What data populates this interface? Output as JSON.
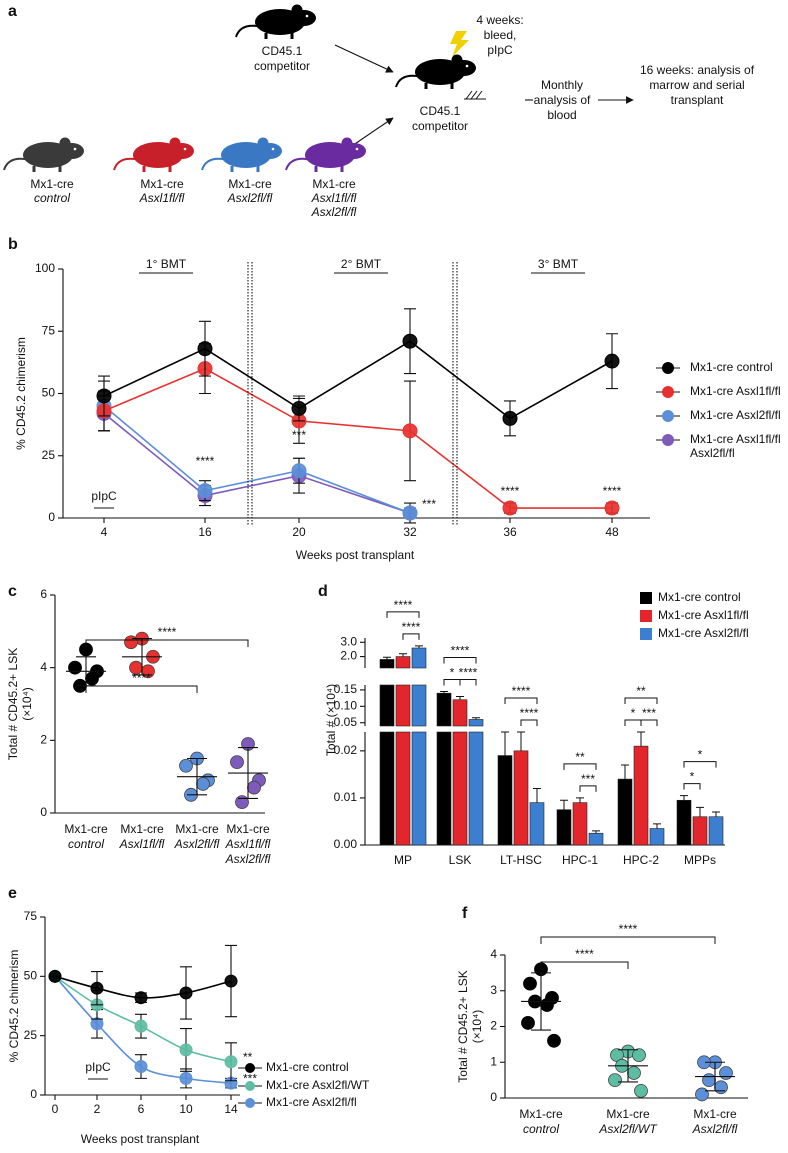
{
  "diagram": {
    "panel": "a",
    "competitor_top": [
      "CD45.1",
      "competitor"
    ],
    "competitor_right": [
      "CD45.1",
      "competitor"
    ],
    "step_1": [
      "4 weeks:",
      "bleed,",
      "pIpC"
    ],
    "step_2": [
      "Monthly",
      "analysis of",
      "blood"
    ],
    "step_3": [
      "16 weeks: analysis of",
      "marrow and serial",
      "transplant"
    ],
    "mice": [
      {
        "label": [
          "Mx1-cre",
          "control"
        ],
        "color": "#3a3a3a"
      },
      {
        "label": [
          "Mx1-cre",
          "Asxl1fl/fl"
        ],
        "color": "#c8202a"
      },
      {
        "label": [
          "Mx1-cre",
          "Asxl2fl/fl"
        ],
        "color": "#3a78c4"
      },
      {
        "label": [
          "Mx1-cre",
          "Asxl1fl/fl",
          "Asxl2fl/fl"
        ],
        "color": "#6a2aa0"
      }
    ]
  },
  "chart_data": [
    {
      "panel": "b",
      "type": "line",
      "xlabel": "Weeks post transplant",
      "ylabel": "% CD45.2 chimerism",
      "categories": [
        "4",
        "16",
        "20",
        "32",
        "36",
        "48"
      ],
      "ylim": [
        0,
        100
      ],
      "yticks": [
        0,
        25,
        50,
        75,
        100
      ],
      "sections": [
        "1° BMT",
        "2° BMT",
        "3° BMT"
      ],
      "marker_label": "pIpC",
      "series": [
        {
          "name": "Mx1-cre control",
          "color": "#000000",
          "values": [
            49,
            68,
            44,
            71,
            40,
            63
          ],
          "errors": [
            8,
            11,
            5,
            13,
            7,
            11
          ]
        },
        {
          "name": "Mx1-cre Asxl1fl/fl",
          "color": "#e8312f",
          "values": [
            43,
            60,
            39,
            35,
            4,
            4
          ],
          "errors": [
            8,
            10,
            9,
            20,
            2,
            2
          ]
        },
        {
          "name": "Mx1-cre Asxl2fl/fl",
          "color": "#5b8fd8",
          "values": [
            45,
            11,
            19,
            2,
            null,
            null
          ],
          "errors": [
            10,
            4,
            5,
            4,
            null,
            null
          ]
        },
        {
          "name": "Mx1-cre Asxl1fl/fl Asxl2fl/fl",
          "color": "#7d5bbd",
          "values": [
            42,
            9,
            17,
            2,
            null,
            null
          ],
          "errors": [
            7,
            4,
            7,
            2,
            null,
            null
          ]
        }
      ],
      "annotations": [
        {
          "label": "****",
          "category": 1
        },
        {
          "label": "***",
          "category": 2
        },
        {
          "label": "***",
          "category": 3
        },
        {
          "label": "****",
          "category": 4
        },
        {
          "label": "****",
          "category": 5
        }
      ]
    },
    {
      "panel": "c",
      "type": "dot",
      "ylabel": [
        "Total # CD45.2+ LSK",
        "(×10⁴)"
      ],
      "categories": [
        [
          "Mx1-cre",
          "control"
        ],
        [
          "Mx1-cre",
          "Asxl1fl/fl"
        ],
        [
          "Mx1-cre",
          "Asxl2fl/fl"
        ],
        [
          "Mx1-cre",
          "Asxl1fl/fl",
          "Asxl2fl/fl"
        ]
      ],
      "colors": [
        "#000000",
        "#e8312f",
        "#5b8fd8",
        "#7d5bbd"
      ],
      "points": [
        [
          4.5,
          4.0,
          3.9,
          3.5,
          3.7
        ],
        [
          4.8,
          4.7,
          4.3,
          4.0,
          3.9
        ],
        [
          1.5,
          1.3,
          0.9,
          0.5,
          0.8
        ],
        [
          1.9,
          1.4,
          0.9,
          0.3,
          0.7
        ]
      ],
      "means": [
        3.9,
        4.3,
        1.0,
        1.1
      ],
      "errors": [
        0.4,
        0.5,
        0.5,
        0.7
      ],
      "ylim": [
        0,
        6
      ],
      "yticks": [
        0,
        2,
        4,
        6
      ],
      "brackets": [
        {
          "label": "****",
          "from": 0,
          "to": 2
        },
        {
          "label": "****",
          "from": 0,
          "to": 3
        }
      ]
    },
    {
      "panel": "d",
      "type": "bar",
      "ylabel": "Total # (×10⁴)",
      "categories": [
        "MP",
        "LSK",
        "LT-HSC",
        "HPC-1",
        "HPC-2",
        "MPPs"
      ],
      "segments": [
        {
          "ylim": [
            0,
            0.024
          ],
          "yticks": [
            {
              "value": 0,
              "label": "0.00"
            },
            {
              "value": 0.01,
              "label": "0.01"
            },
            {
              "value": 0.02,
              "label": "0.02"
            }
          ]
        },
        {
          "ylim": [
            0.04,
            0.165
          ],
          "yticks": [
            {
              "value": 0.05,
              "label": "0.05"
            },
            {
              "value": 0.1,
              "label": "0.10"
            },
            {
              "value": 0.15,
              "label": "0.15"
            }
          ]
        },
        {
          "ylim": [
            1.2,
            3.3
          ],
          "yticks": [
            {
              "value": 2,
              "label": "2.0"
            },
            {
              "value": 3,
              "label": "3.0"
            }
          ]
        }
      ],
      "series": [
        {
          "name": "Mx1-cre control",
          "color": "#000000",
          "values": [
            1.8,
            0.14,
            0.019,
            0.0075,
            0.014,
            0.0095
          ],
          "errors": [
            0.15,
            0.005,
            0.005,
            0.002,
            0.003,
            0.001
          ]
        },
        {
          "name": "Mx1-cre Asxl1fl/fl",
          "color": "#e3262b",
          "values": [
            2.0,
            0.12,
            0.02,
            0.009,
            0.021,
            0.006
          ],
          "errors": [
            0.2,
            0.01,
            0.005,
            0.001,
            0.008,
            0.002
          ]
        },
        {
          "name": "Mx1-cre Asxl2fl/fl",
          "color": "#3c7fd0",
          "values": [
            2.6,
            0.06,
            0.009,
            0.0025,
            0.0035,
            0.006
          ],
          "errors": [
            0.15,
            0.005,
            0.003,
            0.0005,
            0.001,
            0.001
          ]
        }
      ],
      "brackets": [
        {
          "label": "****",
          "category": 0,
          "from": 0,
          "to": 2
        },
        {
          "label": "****",
          "category": 0,
          "from": 1,
          "to": 2
        },
        {
          "label": "****",
          "category": 1,
          "from": 0,
          "to": 2
        },
        {
          "label": "*",
          "category": 1,
          "from": 0,
          "to": 1
        },
        {
          "label": "****",
          "category": 1,
          "from": 1,
          "to": 2
        },
        {
          "label": "****",
          "category": 2,
          "from": 0,
          "to": 2
        },
        {
          "label": "****",
          "category": 2,
          "from": 1,
          "to": 2
        },
        {
          "label": "**",
          "category": 3,
          "from": 0,
          "to": 2
        },
        {
          "label": "***",
          "category": 3,
          "from": 1,
          "to": 2
        },
        {
          "label": "**",
          "category": 4,
          "from": 0,
          "to": 2
        },
        {
          "label": "*",
          "category": 4,
          "from": 0,
          "to": 1
        },
        {
          "label": "***",
          "category": 4,
          "from": 1,
          "to": 2
        },
        {
          "label": "*",
          "category": 5,
          "from": 0,
          "to": 2
        },
        {
          "label": "*",
          "category": 5,
          "from": 0,
          "to": 1
        }
      ]
    },
    {
      "panel": "e",
      "type": "line",
      "smooth": true,
      "xlabel": "Weeks post transplant",
      "ylabel": "% CD45.2 chimerism",
      "categories": [
        "0",
        "2",
        "6",
        "10",
        "14"
      ],
      "ylim": [
        0,
        75
      ],
      "yticks": [
        0,
        25,
        50,
        75
      ],
      "marker_label": "pIpC",
      "series": [
        {
          "name": "Mx1-cre control",
          "color": "#000000",
          "values": [
            50,
            45,
            41,
            43,
            48
          ],
          "errors": [
            0,
            7,
            2,
            11,
            15
          ]
        },
        {
          "name": "Mx1-cre Asxl2fl/WT",
          "color": "#5dbda3",
          "values": [
            50,
            38,
            29,
            19,
            14
          ],
          "errors": [
            0,
            6,
            5,
            9,
            8
          ]
        },
        {
          "name": "Mx1-cre Asxl2fl/fl",
          "color": "#5b8fd8",
          "values": [
            50,
            30,
            12,
            7,
            5
          ],
          "errors": [
            0,
            6,
            5,
            4,
            2
          ]
        }
      ],
      "annotations": [
        {
          "label": "**",
          "series": 1
        },
        {
          "label": "***",
          "series": 2
        }
      ]
    },
    {
      "panel": "f",
      "type": "dot",
      "ylabel": [
        "Total # CD45.2+ LSK",
        "(×10⁴)"
      ],
      "categories": [
        [
          "Mx1-cre",
          "control"
        ],
        [
          "Mx1-cre",
          "Asxl2fl/WT"
        ],
        [
          "Mx1-cre",
          "Asxl2fl/fl"
        ]
      ],
      "colors": [
        "#000000",
        "#5dbda3",
        "#5b8fd8"
      ],
      "points": [
        [
          3.6,
          3.2,
          2.8,
          2.7,
          2.6,
          2.1,
          1.6
        ],
        [
          1.3,
          1.2,
          1.2,
          0.9,
          0.7,
          0.5,
          0.2
        ],
        [
          1.0,
          1.0,
          0.7,
          0.5,
          0.3,
          0.1
        ]
      ],
      "means": [
        2.7,
        0.9,
        0.6
      ],
      "errors": [
        0.8,
        0.45,
        0.4
      ],
      "ylim": [
        0,
        4
      ],
      "yticks": [
        0,
        1,
        2,
        3,
        4
      ],
      "brackets": [
        {
          "label": "****",
          "from": 0,
          "to": 1
        },
        {
          "label": "****",
          "from": 0,
          "to": 2
        }
      ]
    }
  ]
}
